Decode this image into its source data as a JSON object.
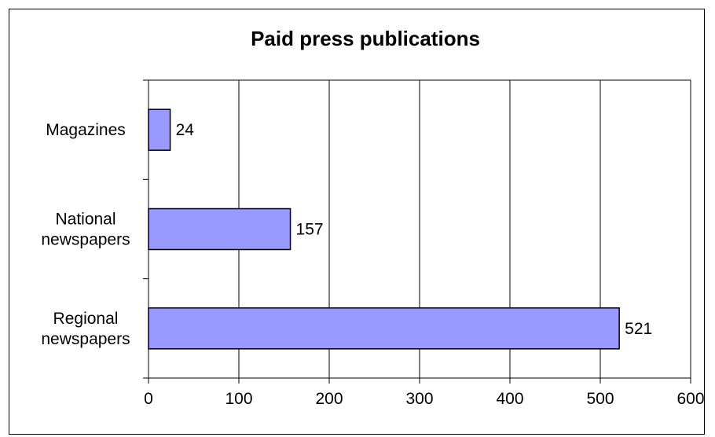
{
  "chart_data": {
    "type": "bar",
    "orientation": "horizontal",
    "title": "Paid press publications",
    "categories": [
      "Magazines",
      "National newspapers",
      "Regional newspapers"
    ],
    "category_label_lines": [
      [
        "Magazines"
      ],
      [
        "National",
        "newspapers"
      ],
      [
        "Regional",
        "newspapers"
      ]
    ],
    "values": [
      24,
      157,
      521
    ],
    "data_labels": [
      "24",
      "157",
      "521"
    ],
    "xlim": [
      0,
      600
    ],
    "x_ticks": [
      0,
      100,
      200,
      300,
      400,
      500,
      600
    ],
    "x_tick_labels": [
      "0",
      "100",
      "200",
      "300",
      "400",
      "500",
      "600"
    ],
    "grid": "vertical",
    "legend": "none",
    "colors": {
      "bar_fill": "#9999ff",
      "bar_stroke": "#000000",
      "grid": "#000000",
      "axis": "#000000"
    }
  }
}
